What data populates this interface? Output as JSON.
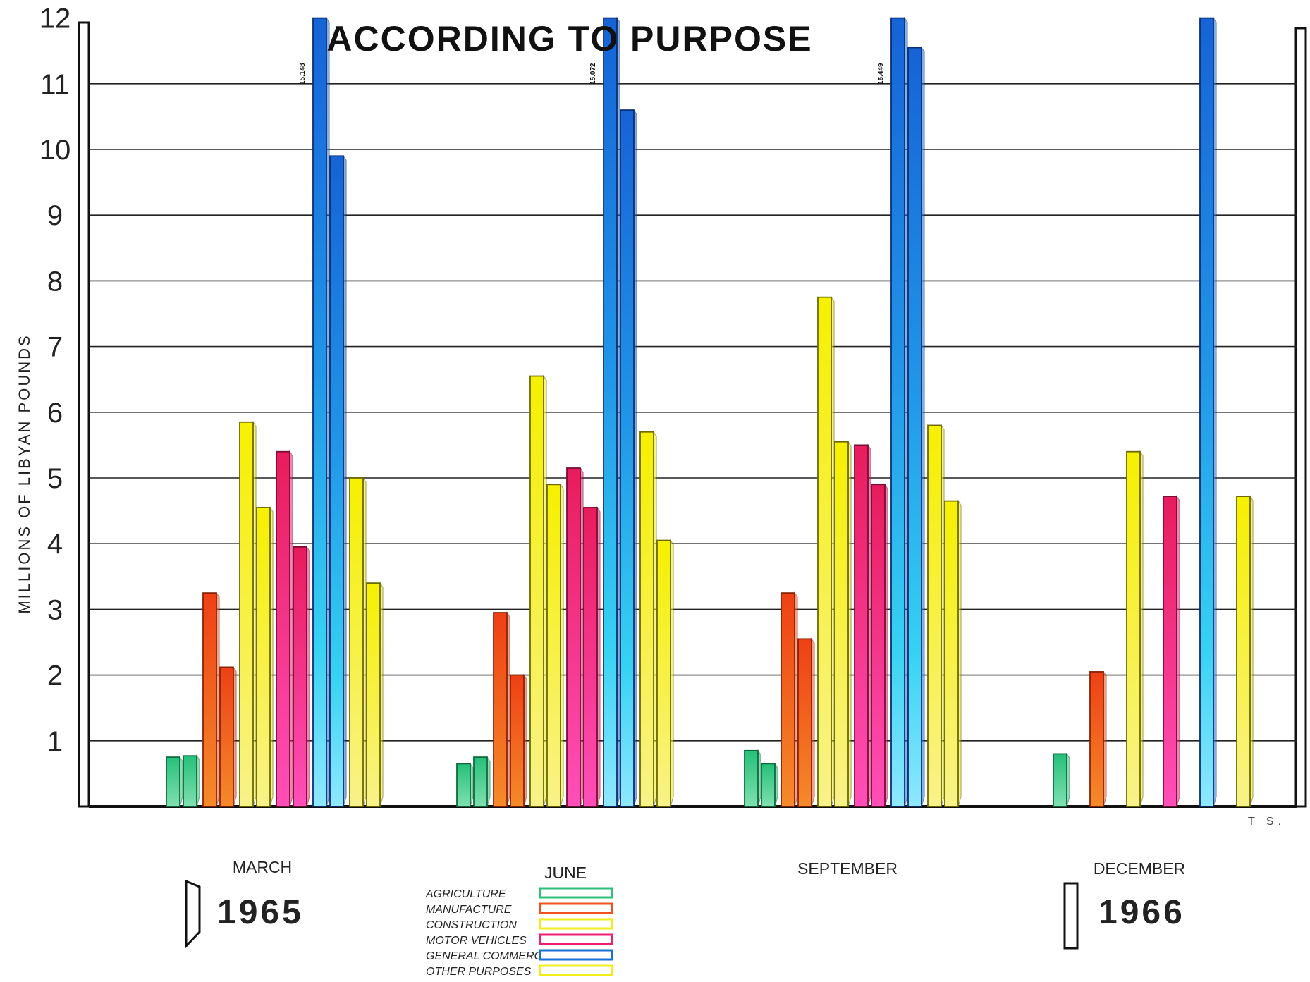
{
  "chart_data": {
    "type": "bar",
    "title": "ACCORDING TO PURPOSE",
    "ylabel": "MILLIONS OF LIBYAN POUNDS",
    "xlabel": "",
    "ylim": [
      0,
      12
    ],
    "y_ticks": [
      "1",
      "2",
      "3",
      "4",
      "5",
      "6",
      "7",
      "8",
      "9",
      "10",
      "11",
      "12"
    ],
    "grid": "horizontal",
    "legend_position": "bottom-center",
    "categories": [
      "MARCH",
      "JUNE",
      "SEPTEMBER",
      "DECEMBER"
    ],
    "years": [
      "1965",
      "1966"
    ],
    "signature": "T S.",
    "series": [
      {
        "name": "AGRICULTURE",
        "color": "#2fbf7a",
        "values_1965": [
          0.75,
          0.65,
          0.85,
          null
        ],
        "values_1966": [
          0.77,
          0.75,
          0.65,
          0.8
        ]
      },
      {
        "name": "MANUFACTURE",
        "color": "#f0521e",
        "values_1965": [
          3.25,
          2.95,
          3.25,
          null
        ],
        "values_1966": [
          2.12,
          2.0,
          2.55,
          2.05
        ]
      },
      {
        "name": "CONSTRUCTION",
        "color": "#f2ee1c",
        "values_1965": [
          5.85,
          6.55,
          7.75,
          null
        ],
        "values_1966": [
          4.55,
          4.9,
          5.55,
          5.4
        ]
      },
      {
        "name": "MOTOR VEHICLES",
        "color": "#ee1f73",
        "values_1965": [
          5.4,
          5.15,
          5.5,
          null
        ],
        "values_1966": [
          3.95,
          4.55,
          4.9,
          4.72
        ]
      },
      {
        "name": "GENERAL COMMERC.",
        "color": "#1a6fd8",
        "values_1965": [
          15.148,
          15.072,
          15.449,
          null
        ],
        "values_1966": [
          9.9,
          10.6,
          11.55,
          12.0
        ]
      },
      {
        "name": "OTHER PURPOSES",
        "color": "#f2ee1c",
        "values_1965": [
          5.0,
          5.7,
          5.8,
          null
        ],
        "values_1966": [
          3.4,
          4.05,
          4.65,
          4.72
        ]
      }
    ],
    "annotations": [
      "15.148",
      "15.072",
      "15.449"
    ]
  }
}
